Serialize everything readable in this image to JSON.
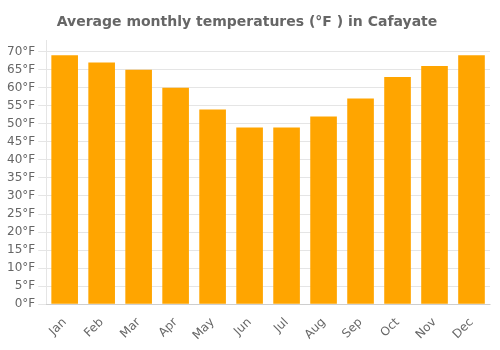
{
  "chart_data": {
    "type": "bar",
    "title": "Average monthly temperatures (°F ) in Cafayate",
    "categories": [
      "Jan",
      "Feb",
      "Mar",
      "Apr",
      "May",
      "Jun",
      "Jul",
      "Aug",
      "Sep",
      "Oct",
      "Nov",
      "Dec"
    ],
    "values": [
      69,
      67,
      65,
      60,
      54,
      49,
      49,
      52,
      57,
      63,
      66,
      69
    ],
    "color": "#FFA500",
    "ylim": [
      0,
      73
    ],
    "yticks": [
      {
        "value": 0,
        "label": "0°F"
      },
      {
        "value": 5,
        "label": "5°F"
      },
      {
        "value": 10,
        "label": "10°F"
      },
      {
        "value": 15,
        "label": "15°F"
      },
      {
        "value": 20,
        "label": "20°F"
      },
      {
        "value": 25,
        "label": "25°F"
      },
      {
        "value": 30,
        "label": "30°F"
      },
      {
        "value": 35,
        "label": "35°F"
      },
      {
        "value": 40,
        "label": "40°F"
      },
      {
        "value": 45,
        "label": "45°F"
      },
      {
        "value": 50,
        "label": "50°F"
      },
      {
        "value": 55,
        "label": "55°F"
      },
      {
        "value": 60,
        "label": "60°F"
      },
      {
        "value": 65,
        "label": "65°F"
      },
      {
        "value": 70,
        "label": "70°F"
      }
    ],
    "grid": true
  }
}
